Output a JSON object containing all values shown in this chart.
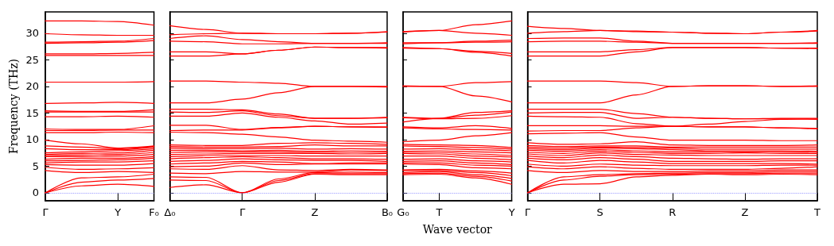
{
  "chart_data": [
    {
      "type": "line",
      "ylabel": "Frequency (THz)",
      "color": "#ff0000",
      "grid": false,
      "categories": [
        "Γ",
        null,
        "Y",
        "F₀"
      ],
      "ylim": [
        -1.5,
        34
      ],
      "yticks": [
        0,
        5,
        10,
        15,
        20,
        25,
        30
      ],
      "ref_lines": [
        {
          "axis": "y",
          "value": 0,
          "label": null,
          "color": "#8080ff",
          "line_style": "dotted"
        }
      ],
      "series": [
        {
          "values": [
            0,
            1.3,
            1.6,
            1.2
          ]
        },
        {
          "values": [
            0,
            2.0,
            2.4,
            2.7
          ]
        },
        {
          "values": [
            0,
            2.8,
            3.0,
            3.5
          ]
        },
        {
          "values": [
            4.2,
            3.8,
            4.0,
            3.8
          ]
        },
        {
          "values": [
            4.8,
            4.4,
            4.5,
            4.7
          ]
        },
        {
          "values": [
            5.3,
            5.2,
            5.2,
            5.5
          ]
        },
        {
          "values": [
            5.6,
            5.8,
            5.8,
            6.0
          ]
        },
        {
          "values": [
            6.0,
            6.1,
            6.2,
            6.5
          ]
        },
        {
          "values": [
            6.3,
            6.5,
            6.5,
            6.8
          ]
        },
        {
          "values": [
            6.8,
            6.8,
            6.9,
            7.2
          ]
        },
        {
          "values": [
            7.0,
            7.1,
            7.2,
            7.6
          ]
        },
        {
          "values": [
            7.2,
            7.4,
            7.5,
            8.0
          ]
        },
        {
          "values": [
            7.5,
            7.7,
            7.9,
            8.3
          ]
        },
        {
          "values": [
            8.3,
            8.1,
            8.1,
            8.6
          ]
        },
        {
          "values": [
            8.8,
            8.6,
            8.3,
            8.7
          ]
        },
        {
          "values": [
            9.9,
            9.2,
            8.4,
            8.8
          ]
        },
        {
          "values": [
            11.3,
            11.3,
            11.4,
            11.3
          ]
        },
        {
          "values": [
            11.7,
            11.7,
            11.8,
            11.8
          ]
        },
        {
          "values": [
            12.0,
            11.9,
            11.9,
            12.6
          ]
        },
        {
          "values": [
            14.3,
            14.3,
            14.4,
            14.2
          ]
        },
        {
          "values": [
            15.2,
            15.2,
            15.2,
            15.2
          ]
        },
        {
          "values": [
            15.4,
            15.3,
            15.3,
            15.6
          ]
        },
        {
          "values": [
            16.8,
            16.9,
            17.0,
            16.8
          ]
        },
        {
          "values": [
            20.8,
            20.8,
            20.8,
            20.9
          ]
        },
        {
          "values": [
            25.8,
            25.8,
            25.8,
            25.8
          ]
        },
        {
          "values": [
            26.1,
            26.1,
            26.2,
            26.4
          ]
        },
        {
          "values": [
            28.1,
            28.2,
            28.3,
            28.6
          ]
        },
        {
          "values": [
            28.3,
            28.4,
            28.5,
            29.0
          ]
        },
        {
          "values": [
            29.9,
            29.7,
            29.6,
            29.6
          ]
        },
        {
          "values": [
            32.3,
            32.3,
            32.2,
            31.5
          ]
        }
      ]
    },
    {
      "type": "line",
      "color": "#ff0000",
      "grid": false,
      "tick_labels": "x",
      "categories": [
        "Δ₀",
        null,
        "Γ",
        null,
        "Z",
        null,
        "B₀"
      ],
      "ylim": [
        -1.5,
        34
      ],
      "yticks": [
        0,
        5,
        10,
        15,
        20,
        25,
        30
      ],
      "ref_lines": [
        {
          "axis": "y",
          "value": 0,
          "label": null,
          "color": "#8080ff",
          "line_style": "dotted"
        }
      ],
      "series": [
        {
          "values": [
            1.0,
            1.5,
            0,
            2.0,
            3.5,
            3.4,
            3.4
          ]
        },
        {
          "values": [
            2.4,
            2.3,
            0,
            2.3,
            3.6,
            3.6,
            3.6
          ]
        },
        {
          "values": [
            3.0,
            2.9,
            0,
            2.6,
            3.8,
            3.9,
            3.8
          ]
        },
        {
          "values": [
            3.7,
            3.6,
            4.0,
            3.9,
            3.9,
            4.3,
            4.2
          ]
        },
        {
          "values": [
            4.5,
            4.4,
            5.1,
            4.3,
            4.2,
            4.4,
            4.3
          ]
        },
        {
          "values": [
            4.9,
            5.0,
            5.6,
            5.3,
            5.4,
            5.4,
            5.4
          ]
        },
        {
          "values": [
            5.4,
            5.6,
            5.9,
            5.8,
            5.5,
            5.6,
            5.6
          ]
        },
        {
          "values": [
            5.9,
            6.1,
            6.4,
            6.2,
            6.1,
            6.1,
            5.9
          ]
        },
        {
          "values": [
            6.4,
            6.6,
            6.8,
            6.6,
            6.4,
            6.4,
            6.3
          ]
        },
        {
          "values": [
            6.8,
            7.0,
            7.0,
            7.0,
            6.9,
            6.9,
            6.9
          ]
        },
        {
          "values": [
            7.2,
            7.3,
            7.4,
            7.4,
            7.4,
            7.3,
            7.4
          ]
        },
        {
          "values": [
            7.6,
            7.7,
            7.7,
            7.7,
            7.6,
            7.6,
            7.6
          ]
        },
        {
          "values": [
            8.0,
            8.0,
            7.9,
            8.0,
            7.8,
            7.9,
            7.8
          ]
        },
        {
          "values": [
            8.4,
            8.3,
            8.3,
            8.4,
            8.2,
            8.3,
            8.2
          ]
        },
        {
          "values": [
            8.7,
            8.6,
            8.6,
            8.7,
            9.0,
            8.8,
            8.8
          ]
        },
        {
          "values": [
            9.0,
            8.9,
            8.9,
            9.3,
            9.4,
            9.3,
            9.1
          ]
        },
        {
          "values": [
            11.4,
            11.3,
            11.0,
            10.5,
            9.9,
            9.7,
            9.5
          ]
        },
        {
          "values": [
            11.7,
            11.8,
            11.8,
            12.2,
            12.5,
            12.4,
            12.3
          ]
        },
        {
          "values": [
            12.7,
            12.7,
            11.9,
            12.3,
            12.5,
            12.4,
            12.4
          ]
        },
        {
          "values": [
            14.4,
            14.4,
            15.0,
            14.2,
            13.5,
            12.9,
            13.1
          ]
        },
        {
          "values": [
            15.2,
            15.1,
            15.4,
            14.5,
            14.0,
            14.0,
            14.1
          ]
        },
        {
          "values": [
            15.7,
            15.7,
            15.6,
            14.8,
            14.0,
            14.0,
            14.2
          ]
        },
        {
          "values": [
            16.9,
            16.9,
            17.6,
            18.8,
            20.0,
            20.0,
            19.9
          ]
        },
        {
          "values": [
            21.0,
            21.0,
            20.8,
            20.6,
            20.0,
            20.0,
            20.0
          ]
        },
        {
          "values": [
            25.7,
            25.7,
            26.1,
            26.8,
            27.4,
            27.3,
            27.2
          ]
        },
        {
          "values": [
            26.5,
            26.5,
            26.1,
            26.8,
            27.4,
            27.3,
            27.3
          ]
        },
        {
          "values": [
            28.5,
            28.4,
            28.0,
            28.0,
            28.1,
            28.1,
            28.1
          ]
        },
        {
          "values": [
            29.0,
            29.5,
            28.8,
            28.4,
            28.1,
            28.1,
            28.2
          ]
        },
        {
          "values": [
            29.7,
            29.9,
            30.0,
            29.9,
            29.9,
            30.0,
            30.2
          ]
        },
        {
          "values": [
            31.4,
            30.7,
            30.0,
            29.9,
            29.9,
            30.0,
            30.3
          ]
        }
      ]
    },
    {
      "type": "line",
      "xlabel": "Wave vector",
      "color": "#ff0000",
      "grid": false,
      "tick_labels": "x",
      "categories": [
        "G₀",
        "T",
        null,
        "Y"
      ],
      "ylim": [
        -1.5,
        34
      ],
      "yticks": [
        0,
        5,
        10,
        15,
        20,
        25,
        30
      ],
      "ref_lines": [
        {
          "axis": "y",
          "value": 0,
          "label": null,
          "color": "#8080ff",
          "line_style": "dotted"
        }
      ],
      "series": [
        {
          "values": [
            3.4,
            3.5,
            2.8,
            1.6
          ]
        },
        {
          "values": [
            3.6,
            3.7,
            3.1,
            2.2
          ]
        },
        {
          "values": [
            3.8,
            4.0,
            3.4,
            2.7
          ]
        },
        {
          "values": [
            4.2,
            4.2,
            3.8,
            3.2
          ]
        },
        {
          "values": [
            4.3,
            4.4,
            4.1,
            3.7
          ]
        },
        {
          "values": [
            5.4,
            5.3,
            4.7,
            4.5
          ]
        },
        {
          "values": [
            5.6,
            5.6,
            5.2,
            5.0
          ]
        },
        {
          "values": [
            5.9,
            6.0,
            5.6,
            5.3
          ]
        },
        {
          "values": [
            6.3,
            6.4,
            6.0,
            5.8
          ]
        },
        {
          "values": [
            6.9,
            6.9,
            6.5,
            6.2
          ]
        },
        {
          "values": [
            7.4,
            7.3,
            6.9,
            6.7
          ]
        },
        {
          "values": [
            7.6,
            7.6,
            7.3,
            7.0
          ]
        },
        {
          "values": [
            7.8,
            7.9,
            7.7,
            7.5
          ]
        },
        {
          "values": [
            8.2,
            8.3,
            8.1,
            7.9
          ]
        },
        {
          "values": [
            8.8,
            8.7,
            8.5,
            8.2
          ]
        },
        {
          "values": [
            9.1,
            9.0,
            8.9,
            8.5
          ]
        },
        {
          "values": [
            9.6,
            9.9,
            10.7,
            11.3
          ]
        },
        {
          "values": [
            12.2,
            12.0,
            11.9,
            11.8
          ]
        },
        {
          "values": [
            12.4,
            12.2,
            12.6,
            12.1
          ]
        },
        {
          "values": [
            14.1,
            13.9,
            14.0,
            14.5
          ]
        },
        {
          "values": [
            13.3,
            14.0,
            14.6,
            15.2
          ]
        },
        {
          "values": [
            14.2,
            14.0,
            15.1,
            15.4
          ]
        },
        {
          "values": [
            20.0,
            20.0,
            18.2,
            17.1
          ]
        },
        {
          "values": [
            20.1,
            20.0,
            20.7,
            20.9
          ]
        },
        {
          "values": [
            27.2,
            27.1,
            26.4,
            25.7
          ]
        },
        {
          "values": [
            27.3,
            27.1,
            26.6,
            26.2
          ]
        },
        {
          "values": [
            28.2,
            28.2,
            28.3,
            28.4
          ]
        },
        {
          "values": [
            28.0,
            28.2,
            28.5,
            28.7
          ]
        },
        {
          "values": [
            30.2,
            30.5,
            30.0,
            29.6
          ]
        },
        {
          "values": [
            30.3,
            30.5,
            31.6,
            32.3
          ]
        }
      ]
    },
    {
      "type": "line",
      "color": "#ff0000",
      "grid": false,
      "tick_labels": "x",
      "categories": [
        "Γ",
        null,
        "S",
        null,
        "R",
        null,
        "Z",
        null,
        "T"
      ],
      "ylim": [
        -1.5,
        34
      ],
      "yticks": [
        0,
        5,
        10,
        15,
        20,
        25,
        30
      ],
      "ref_lines": [
        {
          "axis": "y",
          "value": 0,
          "label": null,
          "color": "#8080ff",
          "line_style": "dotted"
        }
      ],
      "series": [
        {
          "values": [
            0,
            1.6,
            1.7,
            3.0,
            3.3,
            3.5,
            3.4,
            3.5,
            3.4
          ]
        },
        {
          "values": [
            0,
            2.4,
            3.1,
            3.4,
            3.5,
            3.6,
            3.6,
            3.7,
            3.7
          ]
        },
        {
          "values": [
            0,
            3.0,
            3.4,
            3.6,
            3.7,
            3.8,
            3.8,
            4.0,
            4.0
          ]
        },
        {
          "values": [
            4.2,
            3.8,
            4.2,
            4.0,
            4.0,
            4.1,
            4.1,
            4.3,
            4.3
          ]
        },
        {
          "values": [
            4.9,
            4.5,
            4.9,
            4.6,
            4.4,
            4.4,
            4.4,
            4.6,
            4.9
          ]
        },
        {
          "values": [
            5.4,
            5.0,
            5.4,
            5.2,
            5.1,
            5.1,
            5.1,
            5.2,
            5.2
          ]
        },
        {
          "values": [
            6.1,
            5.6,
            6.1,
            5.8,
            5.5,
            5.5,
            5.5,
            5.5,
            5.4
          ]
        },
        {
          "values": [
            6.5,
            6.2,
            6.6,
            6.3,
            5.9,
            5.9,
            5.9,
            6.0,
            6.0
          ]
        },
        {
          "values": [
            6.9,
            6.6,
            7.1,
            6.8,
            6.5,
            6.4,
            6.3,
            6.4,
            6.4
          ]
        },
        {
          "values": [
            7.3,
            7.0,
            7.5,
            7.2,
            7.1,
            7.0,
            7.0,
            7.0,
            7.0
          ]
        },
        {
          "values": [
            7.6,
            7.4,
            7.8,
            7.6,
            7.4,
            7.4,
            7.5,
            7.4,
            7.4
          ]
        },
        {
          "values": [
            8.0,
            7.8,
            8.1,
            7.9,
            7.7,
            7.7,
            7.7,
            7.7,
            7.6
          ]
        },
        {
          "values": [
            8.3,
            8.1,
            8.4,
            8.3,
            8.1,
            7.9,
            7.9,
            7.9,
            7.8
          ]
        },
        {
          "values": [
            8.6,
            8.4,
            8.6,
            8.5,
            8.4,
            8.2,
            8.2,
            8.2,
            8.2
          ]
        },
        {
          "values": [
            8.9,
            8.7,
            8.8,
            8.8,
            8.6,
            8.6,
            8.6,
            8.6,
            8.6
          ]
        },
        {
          "values": [
            9.4,
            9.1,
            9.2,
            9.6,
            9.0,
            8.9,
            8.9,
            8.9,
            9.0
          ]
        },
        {
          "values": [
            11.1,
            11.2,
            11.3,
            10.5,
            9.9,
            9.9,
            9.9,
            9.8,
            9.8
          ]
        },
        {
          "values": [
            11.6,
            11.7,
            11.7,
            12.2,
            12.5,
            12.4,
            12.4,
            12.2,
            12.1
          ]
        },
        {
          "values": [
            12.6,
            12.6,
            12.6,
            12.5,
            12.5,
            12.4,
            12.4,
            12.2,
            12.0
          ]
        },
        {
          "values": [
            14.4,
            14.3,
            14.2,
            13.0,
            12.5,
            12.9,
            13.4,
            13.8,
            13.9
          ]
        },
        {
          "values": [
            15.0,
            15.1,
            15.1,
            14.0,
            14.2,
            14.0,
            13.9,
            13.9,
            13.8
          ]
        },
        {
          "values": [
            15.7,
            15.7,
            15.7,
            14.9,
            14.2,
            14.0,
            13.9,
            14.0,
            14.0
          ]
        },
        {
          "values": [
            16.9,
            16.9,
            16.9,
            18.4,
            20.0,
            20.1,
            20.1,
            20.0,
            20.0
          ]
        },
        {
          "values": [
            21.0,
            21.0,
            21.0,
            20.7,
            20.0,
            20.1,
            20.1,
            20.0,
            20.1
          ]
        },
        {
          "values": [
            25.7,
            25.7,
            25.7,
            26.5,
            27.3,
            27.3,
            27.3,
            27.2,
            27.1
          ]
        },
        {
          "values": [
            26.5,
            26.5,
            26.5,
            26.9,
            27.3,
            27.3,
            27.3,
            27.2,
            27.2
          ]
        },
        {
          "values": [
            28.4,
            28.5,
            28.5,
            28.3,
            28.1,
            28.1,
            28.1,
            28.1,
            28.1
          ]
        },
        {
          "values": [
            29.0,
            29.1,
            29.1,
            28.5,
            28.1,
            28.1,
            28.1,
            28.1,
            28.2
          ]
        },
        {
          "values": [
            30.0,
            30.3,
            30.5,
            30.4,
            30.2,
            30.0,
            29.9,
            30.2,
            30.4
          ]
        },
        {
          "values": [
            31.3,
            30.9,
            30.5,
            30.3,
            30.2,
            30.0,
            29.9,
            30.2,
            30.5
          ]
        }
      ]
    }
  ]
}
